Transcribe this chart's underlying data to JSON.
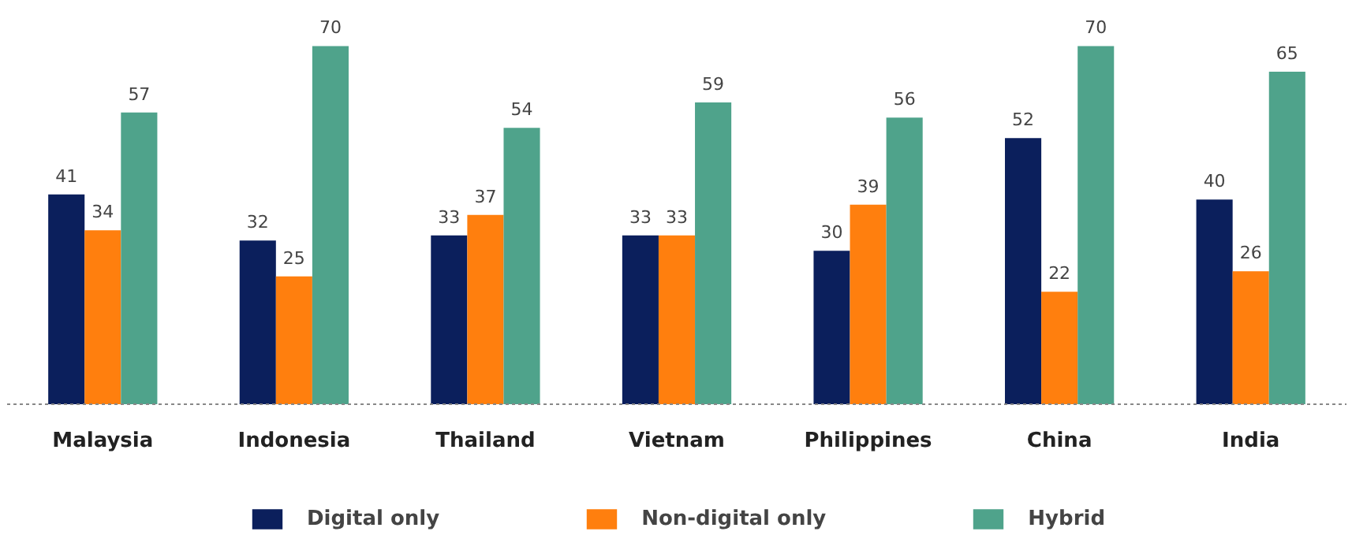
{
  "chart_data": {
    "type": "bar",
    "categories": [
      "Malaysia",
      "Indonesia",
      "Thailand",
      "Vietnam",
      "Philippines",
      "China",
      "India"
    ],
    "series": [
      {
        "name": "Digital only",
        "color": "#0b1f5c",
        "values": [
          41,
          32,
          33,
          33,
          30,
          52,
          40
        ]
      },
      {
        "name": "Non-digital only",
        "color": "#ff7f0e",
        "values": [
          34,
          25,
          37,
          33,
          39,
          22,
          26
        ]
      },
      {
        "name": "Hybrid",
        "color": "#4fa38b",
        "values": [
          57,
          70,
          54,
          59,
          56,
          70,
          65
        ]
      }
    ],
    "data_labels": true,
    "grid": false,
    "legend": "bottom"
  }
}
